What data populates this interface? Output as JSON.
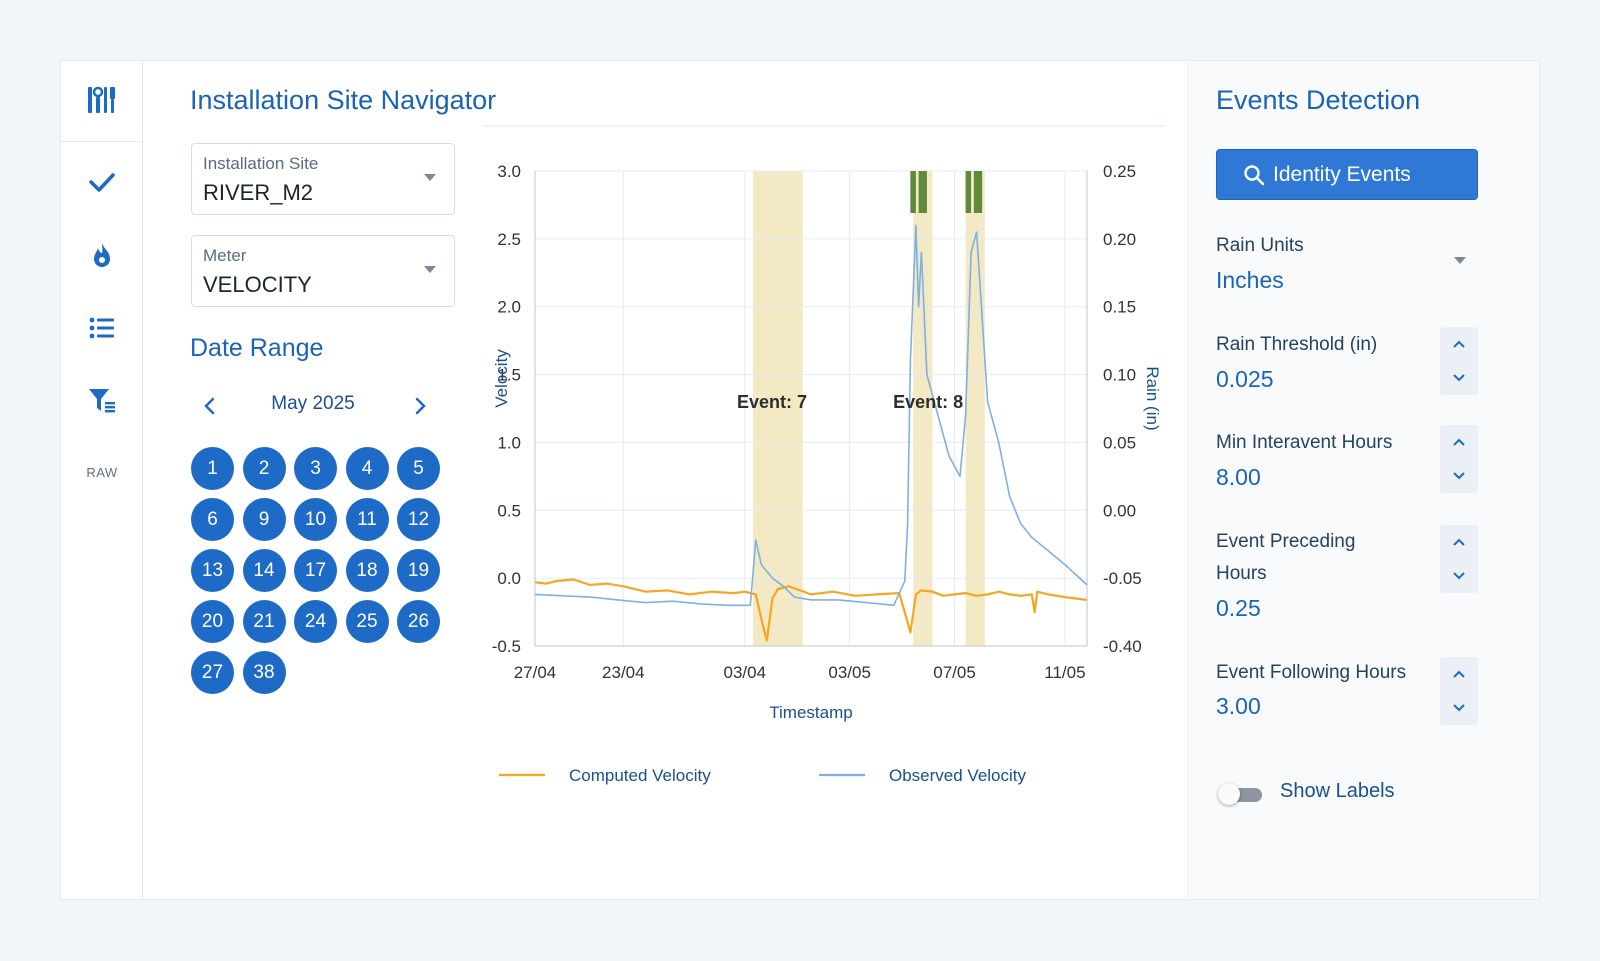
{
  "rail": {
    "icons": [
      "tools-icon",
      "check-icon",
      "flame-icon",
      "list-icon",
      "filter-list-icon"
    ],
    "raw_label": "RAW"
  },
  "main": {
    "title": "Installation Site Navigator",
    "site_select": {
      "label": "Installation Site",
      "value": "RIVER_M2"
    },
    "meter_select": {
      "label": "Meter",
      "value": "VELOCITY"
    },
    "date_range_title": "Date Range",
    "calendar": {
      "month": "May 2025",
      "days": [
        "1",
        "2",
        "3",
        "4",
        "5",
        "6",
        "9",
        "10",
        "11",
        "12",
        "13",
        "14",
        "17",
        "18",
        "19",
        "20",
        "21",
        "24",
        "25",
        "26",
        "27",
        "38"
      ]
    }
  },
  "chart_data": {
    "type": "line",
    "xlabel": "Timestamp",
    "ylabel": "Velocity",
    "y2label": "Rain (in)",
    "x_ticks": [
      "27/04",
      "23/04",
      "03/04",
      "03/05",
      "07/05",
      "11/05"
    ],
    "y_ticks": [
      "3.0",
      "2.5",
      "2.0",
      "1.5",
      "1.0",
      "0.5",
      "0.0",
      "-0.5"
    ],
    "y2_ticks": [
      "0.25",
      "0.20",
      "0.15",
      "0.10",
      "0.05",
      "0.00",
      "-0.05",
      "-0.40"
    ],
    "ylim": [
      -0.5,
      3.0
    ],
    "grid": true,
    "legend_position": "bottom",
    "events": [
      {
        "label": "Event: 7",
        "start_frac": 0.395,
        "end_frac": 0.485
      },
      {
        "label": "Event: 8",
        "start_frac": 0.685,
        "end_frac": 0.72
      },
      {
        "label": "",
        "start_frac": 0.78,
        "end_frac": 0.815
      }
    ],
    "series": [
      {
        "name": "Computed Velocity",
        "color": "#f5a623",
        "x": [
          0,
          0.02,
          0.04,
          0.07,
          0.1,
          0.13,
          0.16,
          0.2,
          0.24,
          0.28,
          0.32,
          0.36,
          0.38,
          0.4,
          0.41,
          0.42,
          0.43,
          0.44,
          0.46,
          0.48,
          0.5,
          0.54,
          0.58,
          0.62,
          0.66,
          0.68,
          0.69,
          0.7,
          0.72,
          0.74,
          0.76,
          0.78,
          0.8,
          0.82,
          0.84,
          0.86,
          0.88,
          0.9,
          0.905,
          0.91,
          0.93,
          0.96,
          1.0
        ],
        "y": [
          -0.03,
          -0.04,
          -0.02,
          -0.01,
          -0.05,
          -0.04,
          -0.06,
          -0.1,
          -0.09,
          -0.12,
          -0.1,
          -0.11,
          -0.1,
          -0.12,
          -0.3,
          -0.46,
          -0.15,
          -0.08,
          -0.06,
          -0.09,
          -0.12,
          -0.1,
          -0.13,
          -0.12,
          -0.11,
          -0.4,
          -0.12,
          -0.09,
          -0.1,
          -0.13,
          -0.12,
          -0.11,
          -0.13,
          -0.12,
          -0.1,
          -0.12,
          -0.13,
          -0.12,
          -0.25,
          -0.1,
          -0.12,
          -0.14,
          -0.16
        ]
      },
      {
        "name": "Observed Velocity",
        "color": "#7eb0e6",
        "x": [
          0,
          0.05,
          0.1,
          0.15,
          0.2,
          0.25,
          0.3,
          0.35,
          0.39,
          0.4,
          0.41,
          0.43,
          0.45,
          0.47,
          0.5,
          0.55,
          0.6,
          0.65,
          0.67,
          0.675,
          0.68,
          0.69,
          0.695,
          0.7,
          0.71,
          0.73,
          0.75,
          0.77,
          0.78,
          0.79,
          0.8,
          0.82,
          0.84,
          0.86,
          0.88,
          0.9,
          0.93,
          0.96,
          1.0
        ],
        "y": [
          -0.12,
          -0.13,
          -0.14,
          -0.16,
          -0.18,
          -0.17,
          -0.19,
          -0.2,
          -0.2,
          0.28,
          0.1,
          0.0,
          -0.06,
          -0.14,
          -0.16,
          -0.16,
          -0.18,
          -0.2,
          -0.02,
          0.4,
          1.6,
          2.6,
          2.0,
          2.4,
          1.5,
          1.2,
          0.9,
          0.75,
          1.2,
          2.4,
          2.55,
          1.3,
          1.0,
          0.6,
          0.4,
          0.3,
          0.2,
          0.1,
          -0.05
        ]
      }
    ]
  },
  "side": {
    "title": "Events Detection",
    "identify_button": "Identity Events",
    "rain_units": {
      "label": "Rain Units",
      "value": "Inches"
    },
    "rain_threshold": {
      "label": "Rain Threshold (in)",
      "value": "0.025"
    },
    "min_interevent": {
      "label": "Min Interavent Hours",
      "value": "8.00"
    },
    "event_preceding": {
      "label_line1": "Event Preceding",
      "label_line2": "Hours",
      "value": "0.25"
    },
    "event_following": {
      "label": "Event Following Hours",
      "value": "3.00"
    },
    "show_labels": {
      "label": "Show Labels",
      "on": false
    }
  },
  "colors": {
    "accent": "#1a63b8",
    "primary_button": "#2f78d6",
    "event_band": "#f3e9c4",
    "rain_bar": "#5e8a3a"
  }
}
